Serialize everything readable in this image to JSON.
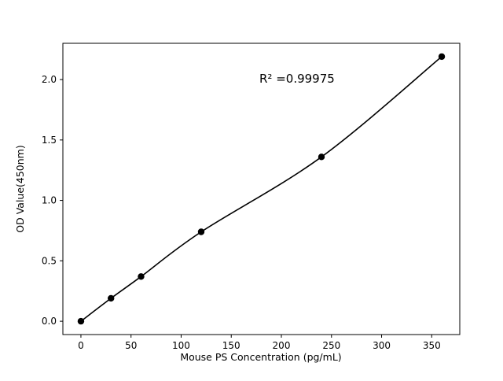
{
  "figure": {
    "background": "#ffffff"
  },
  "chart_data": {
    "type": "scatter",
    "title": "",
    "xlabel": "Mouse PS Concentration (pg/mL)",
    "ylabel": "OD Value(450nm)",
    "annotation": "R² =0.99975",
    "x": [
      0,
      30,
      60,
      120,
      240,
      360
    ],
    "y": [
      0.0,
      0.19,
      0.37,
      0.74,
      1.36,
      2.19
    ],
    "fit_line": true,
    "marker_color": "#000000",
    "line_color": "#000000",
    "xlim": [
      -18,
      378
    ],
    "ylim": [
      -0.11,
      2.3
    ],
    "xticks": [
      0,
      50,
      100,
      150,
      200,
      250,
      300,
      350
    ],
    "yticks": [
      0.0,
      0.5,
      1.0,
      1.5,
      2.0
    ],
    "grid": false,
    "legend": false
  }
}
